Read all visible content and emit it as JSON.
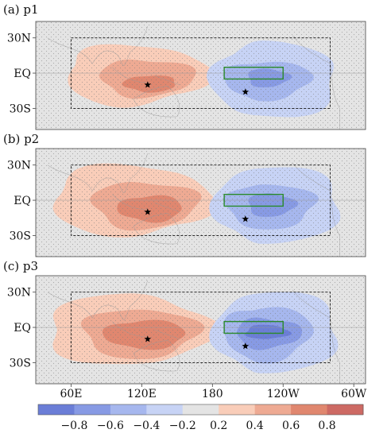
{
  "chart_data": {
    "type": "map",
    "panels": [
      {
        "label": "(a) p1",
        "warm_center": {
          "lon": 125,
          "lat": -10
        },
        "cold_center": {
          "lon": -152,
          "lat": -16
        },
        "warm": [
          {
            "level": 0.2,
            "lon0": 55,
            "lon1": 175,
            "lat0": -28,
            "lat1": 24,
            "lonc": 112,
            "latc": 2
          },
          {
            "level": 0.4,
            "lon0": 85,
            "lon1": 165,
            "lat0": -20,
            "lat1": 12,
            "lonc": 120,
            "latc": -4
          },
          {
            "level": 0.6,
            "lon0": 105,
            "lon1": 150,
            "lat0": -16,
            "lat1": -2,
            "lonc": 125,
            "latc": -9
          }
        ],
        "cold": [
          {
            "level": -0.2,
            "lon0": -180,
            "lon1": -72,
            "lat0": -38,
            "lat1": 26,
            "lonc": -140,
            "latc": -4
          },
          {
            "level": -0.4,
            "lon0": -170,
            "lon1": -95,
            "lat0": -22,
            "lat1": 10,
            "lonc": -140,
            "latc": -5
          },
          {
            "level": -0.6,
            "lon0": -150,
            "lon1": -115,
            "lat0": -12,
            "lat1": 4,
            "lonc": -135,
            "latc": -4
          }
        ]
      },
      {
        "label": "(b) p2",
        "warm_center": {
          "lon": 125,
          "lat": -10
        },
        "cold_center": {
          "lon": -152,
          "lat": -16
        },
        "warm": [
          {
            "level": 0.2,
            "lon0": 42,
            "lon1": 178,
            "lat0": -30,
            "lat1": 30,
            "lonc": 115,
            "latc": 0
          },
          {
            "level": 0.4,
            "lon0": 78,
            "lon1": 168,
            "lat0": -24,
            "lat1": 16,
            "lonc": 120,
            "latc": -3
          },
          {
            "level": 0.6,
            "lon0": 100,
            "lon1": 155,
            "lat0": -18,
            "lat1": 4,
            "lonc": 126,
            "latc": -7
          }
        ],
        "cold": [
          {
            "level": -0.2,
            "lon0": -178,
            "lon1": -68,
            "lat0": -36,
            "lat1": 28,
            "lonc": -140,
            "latc": -3
          },
          {
            "level": -0.4,
            "lon0": -168,
            "lon1": -92,
            "lat0": -24,
            "lat1": 14,
            "lonc": -138,
            "latc": -4
          },
          {
            "level": -0.6,
            "lon0": -150,
            "lon1": -110,
            "lat0": -14,
            "lat1": 6,
            "lonc": -132,
            "latc": -4
          }
        ]
      },
      {
        "label": "(c) p3",
        "warm_center": {
          "lon": 125,
          "lat": -10
        },
        "cold_center": {
          "lon": -152,
          "lat": -16
        },
        "warm": [
          {
            "level": 0.2,
            "lon0": 38,
            "lon1": 178,
            "lat0": -32,
            "lat1": 28,
            "lonc": 112,
            "latc": -2
          },
          {
            "level": 0.4,
            "lon0": 70,
            "lon1": 168,
            "lat0": -26,
            "lat1": 16,
            "lonc": 115,
            "latc": -4
          },
          {
            "level": 0.6,
            "lon0": 88,
            "lon1": 158,
            "lat0": -18,
            "lat1": 6,
            "lonc": 120,
            "latc": -6
          }
        ],
        "cold": [
          {
            "level": -0.2,
            "lon0": -178,
            "lon1": -70,
            "lat0": -38,
            "lat1": 30,
            "lonc": -140,
            "latc": -4
          },
          {
            "level": -0.4,
            "lon0": -170,
            "lon1": -95,
            "lat0": -28,
            "lat1": 18,
            "lonc": -140,
            "latc": -5
          },
          {
            "level": -0.6,
            "lon0": -160,
            "lon1": -105,
            "lat0": -18,
            "lat1": 8,
            "lonc": -135,
            "latc": -5
          },
          {
            "level": -0.8,
            "lon0": -152,
            "lon1": -115,
            "lat0": -10,
            "lat1": 2,
            "lonc": -135,
            "latc": -4
          }
        ]
      }
    ],
    "x_ticks": [
      "60E",
      "120E",
      "180",
      "120W",
      "60W"
    ],
    "y_ticks": [
      "30N",
      "EQ",
      "30S"
    ],
    "colorbar": {
      "ticks": [
        "−0.8",
        "−0.6",
        "−0.4",
        "−0.2",
        "0.2",
        "0.4",
        "0.6",
        "0.8"
      ],
      "colors": [
        "#6b7ed7",
        "#879ae4",
        "#a6b7ee",
        "#c7d3f5",
        "#e4e4e4",
        "#f9cdb9",
        "#eeaa93",
        "#e0876f",
        "#cd6a64"
      ]
    },
    "dashed_box": {
      "lon0": 60,
      "lon1": -80,
      "lat0": -30,
      "lat1": 30
    },
    "green_box": {
      "lon0": -170,
      "lon1": -120,
      "lat0": -5,
      "lat1": 5
    }
  }
}
